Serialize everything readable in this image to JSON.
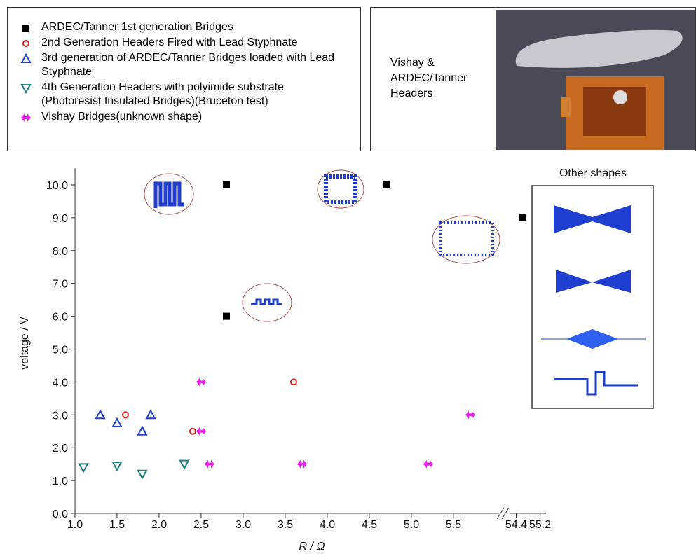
{
  "chart_data": {
    "type": "scatter",
    "photo_caption": "Vishay & ARDEC/Tanner Headers",
    "inset_title": "Other shapes",
    "x_label": "R / Ω",
    "y_label": "voltage / V",
    "x_segments": [
      {
        "xlim": [
          1.0,
          6.0
        ],
        "xticks": [
          {
            "value": 1.0,
            "label": "1.0"
          },
          1.5,
          {
            "value": 2.0,
            "label": "2.0"
          },
          2.5,
          {
            "value": 3.0,
            "label": "3.0"
          },
          3.5,
          {
            "value": 4.0,
            "label": "4.0"
          },
          4.5,
          {
            "value": 5.0,
            "label": "5.0"
          },
          5.5
        ]
      },
      {
        "xlim": [
          54.2,
          55.4
        ],
        "xticks": [
          54.4,
          55.2
        ]
      }
    ],
    "ylim": [
      0,
      10.5
    ],
    "yticks": [
      {
        "value": 0,
        "label": "0.0"
      },
      {
        "value": 1,
        "label": "1.0"
      },
      {
        "value": 2,
        "label": "2.0"
      },
      {
        "value": 3,
        "label": "3.0"
      },
      {
        "value": 4,
        "label": "4.0"
      },
      {
        "value": 5,
        "label": "5.0"
      },
      {
        "value": 6,
        "label": "6.0"
      },
      {
        "value": 7,
        "label": "7.0"
      },
      {
        "value": 8,
        "label": "8.0"
      },
      {
        "value": 9,
        "label": "9.0"
      },
      {
        "value": 10,
        "label": "10.0"
      }
    ],
    "series": [
      {
        "name": "ARDEC/Tanner 1st generation Bridges",
        "color": "#000000",
        "marker": "square",
        "x": [
          2.8,
          4.7,
          54.6,
          2.8
        ],
        "values": [
          10.0,
          10.0,
          9.0,
          6.0
        ]
      },
      {
        "name": "2nd Generation Headers Fired with Lead Styphnate",
        "color": "#e02020",
        "marker": "circle",
        "x": [
          1.6,
          2.4,
          3.6
        ],
        "values": [
          3.0,
          2.5,
          4.0
        ]
      },
      {
        "name": "3rd generation of ARDEC/Tanner Bridges loaded with Lead Styphnate",
        "color": "#1f3fd0",
        "marker": "triangle-up",
        "x": [
          1.3,
          1.5,
          1.8,
          1.9
        ],
        "values": [
          3.0,
          2.75,
          2.5,
          3.0
        ]
      },
      {
        "name": "4th Generation Headers with polyimide substrate (Photoresist Insulated Bridges)(Bruceton test)",
        "color": "#1f8080",
        "marker": "triangle-down",
        "x": [
          1.1,
          1.5,
          1.8,
          2.3
        ],
        "values": [
          1.4,
          1.45,
          1.2,
          1.5
        ]
      },
      {
        "name": "Vishay Bridges(unknown shape)",
        "color": "#ee22ee",
        "marker": "cross",
        "x": [
          2.5,
          2.5,
          2.6,
          3.7,
          5.2,
          5.7
        ],
        "values": [
          4.0,
          2.5,
          1.5,
          1.5,
          1.5,
          3.0
        ]
      }
    ]
  }
}
